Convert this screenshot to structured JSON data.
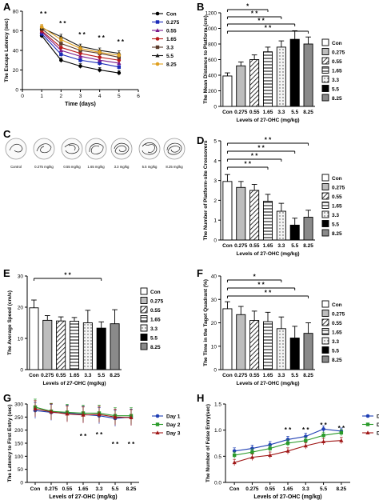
{
  "colors": {
    "con": "#ffffff",
    "d0275": "#bdbdbd",
    "d055": "#ffffff",
    "d165": "#ffffff",
    "d33": "#dedede",
    "d55": "#000000",
    "d825": "#8a8a8a",
    "day1": "#1f3fb4",
    "day2": "#2a9a2a",
    "day3": "#a01818",
    "lineA": [
      "#000000",
      "#1a2ab8",
      "#7a1a8c",
      "#b81a1a",
      "#5a3a2a",
      "#1a1a1a",
      "#e0a020"
    ]
  },
  "panel_letters": [
    "A",
    "B",
    "C",
    "D",
    "E",
    "F",
    "G",
    "H"
  ],
  "chart_data": [
    {
      "panel": "A",
      "type": "line",
      "xlabel": "Time (days)",
      "ylabel": "The Escape Latency (sec)",
      "xlim": [
        0,
        6
      ],
      "ylim": [
        0,
        80
      ],
      "xticks": [
        "0",
        "1",
        "2",
        "3",
        "4",
        "5",
        "6"
      ],
      "yticks": [
        "0",
        "20",
        "40",
        "60",
        "80"
      ],
      "x": [
        1,
        2,
        3,
        4,
        5
      ],
      "series": [
        {
          "name": "Con",
          "values": [
            55,
            30,
            24,
            20,
            17
          ]
        },
        {
          "name": "0.275",
          "values": [
            57,
            36,
            30,
            27,
            23
          ]
        },
        {
          "name": "0.55",
          "values": [
            59,
            40,
            34,
            30,
            27
          ]
        },
        {
          "name": "1.65",
          "values": [
            60,
            43,
            37,
            33,
            30
          ]
        },
        {
          "name": "3.3",
          "values": [
            62,
            47,
            40,
            37,
            33
          ]
        },
        {
          "name": "5.5",
          "values": [
            63,
            54,
            44,
            40,
            37
          ]
        },
        {
          "name": "8.25",
          "values": [
            64,
            51,
            42,
            38,
            35
          ]
        }
      ],
      "annotations": [
        "* *",
        "* *",
        "* *",
        "* *",
        "* *"
      ],
      "legend": "right"
    },
    {
      "panel": "B",
      "type": "bar",
      "xlabel": "Levels of 27-OHC (mg/kg)",
      "ylabel": "The Mean Distance to Platform (cm)",
      "categories": [
        "Con",
        "0.275",
        "0.55",
        "1.65",
        "3.3",
        "5.5",
        "8.25"
      ],
      "values": [
        390,
        520,
        600,
        700,
        760,
        860,
        800
      ],
      "errors": [
        40,
        50,
        60,
        60,
        80,
        110,
        90
      ],
      "ylim": [
        0,
        1200
      ],
      "yticks": [
        "0",
        "200",
        "400",
        "600",
        "800",
        "1000",
        "1200"
      ],
      "significance": [
        "*",
        "* *",
        "* *",
        "* *"
      ],
      "legend": [
        "Con",
        "0.275",
        "0.55",
        "1.65",
        "3.3",
        "5.5",
        "8.25"
      ]
    },
    {
      "panel": "D",
      "type": "bar",
      "xlabel": "Levels of 27-OHC (mg/kg)",
      "ylabel": "The Number of Platform-site Crossovers",
      "categories": [
        "Con",
        "0.275",
        "0.55",
        "1.65",
        "3.3",
        "5.5",
        "8.25"
      ],
      "values": [
        2.95,
        2.65,
        2.5,
        1.95,
        1.45,
        0.75,
        1.15
      ],
      "errors": [
        0.35,
        0.3,
        0.3,
        0.35,
        0.4,
        0.35,
        0.35
      ],
      "ylim": [
        0,
        5
      ],
      "yticks": [
        "0",
        "1",
        "2",
        "3",
        "4",
        "5"
      ],
      "significance": [
        "* *",
        "* *",
        "* *",
        "* *"
      ],
      "legend": [
        "Con",
        "0.275",
        "0.55",
        "1.65",
        "3.3",
        "5.5",
        "8.25"
      ]
    },
    {
      "panel": "E",
      "type": "bar",
      "xlabel": "Levels of 27-OHC (mg/kg)",
      "ylabel": "The Average Speed (cm/s)",
      "categories": [
        "Con",
        "0.275",
        "0.55",
        "1.65",
        "3.3",
        "5.5",
        "8.25"
      ],
      "values": [
        19.8,
        15.8,
        15.6,
        15.5,
        15.0,
        13.3,
        14.7
      ],
      "errors": [
        2.5,
        1.5,
        1.3,
        1.2,
        4.0,
        2.0,
        4.5
      ],
      "ylim": [
        0,
        30
      ],
      "yticks": [
        "0",
        "10",
        "20",
        "30"
      ],
      "significance": [
        "* *"
      ],
      "legend": [
        "Con",
        "0.275",
        "0.55",
        "1.65",
        "3.3",
        "5.5",
        "8.25"
      ]
    },
    {
      "panel": "F",
      "type": "bar",
      "xlabel": "Levels of 27-OHC (mg/kg)",
      "ylabel": "The Time in the Taget Quadrant (%)",
      "categories": [
        "Con",
        "0.275",
        "0.55",
        "1.65",
        "3.3",
        "5.5",
        "8.25"
      ],
      "values": [
        26,
        23.5,
        21,
        20.5,
        17.5,
        13.5,
        15.5
      ],
      "errors": [
        3,
        3.5,
        4,
        4,
        5,
        5,
        4.5
      ],
      "ylim": [
        0,
        40
      ],
      "yticks": [
        "0",
        "10",
        "20",
        "30",
        "40"
      ],
      "significance": [
        "*",
        "* *",
        "* *"
      ],
      "legend": [
        "Con",
        "0.275",
        "0.55",
        "1.65",
        "3.3",
        "5.5",
        "8.25"
      ]
    },
    {
      "panel": "G",
      "type": "line",
      "xlabel": "Levels of 27-OHC (mg/kg)",
      "ylabel": "The Latency to First Entry (sec)",
      "categories": [
        "Con",
        "0.275",
        "0.55",
        "1.65",
        "3.3",
        "5.5",
        "8.25"
      ],
      "ylim": [
        0,
        300
      ],
      "yticks": [
        "0",
        "50",
        "100",
        "150",
        "200",
        "250",
        "300"
      ],
      "series": [
        {
          "name": "Day 1",
          "values": [
            275,
            268,
            265,
            260,
            255,
            245,
            250
          ]
        },
        {
          "name": "Day 2",
          "values": [
            288,
            272,
            268,
            265,
            265,
            255,
            255
          ]
        },
        {
          "name": "Day 3",
          "values": [
            282,
            270,
            262,
            258,
            260,
            250,
            248
          ]
        }
      ],
      "significance": [
        "* *",
        "* *",
        "* *",
        "* *"
      ],
      "legend": "right"
    },
    {
      "panel": "H",
      "type": "line",
      "xlabel": "Levels of 27-OHC (mg/kg)",
      "ylabel": "The Number of False Entry(sec)",
      "categories": [
        "Con",
        "0.275",
        "0.55",
        "1.65",
        "3.3",
        "5.5",
        "8.25"
      ],
      "ylim": [
        0,
        1.5
      ],
      "yticks": [
        "0.0",
        "0.5",
        "1.0",
        "1.5"
      ],
      "series": [
        {
          "name": "Day 1",
          "values": [
            0.6,
            0.65,
            0.72,
            0.82,
            0.88,
            1.02,
            0.98
          ]
        },
        {
          "name": "Day 2",
          "values": [
            0.52,
            0.58,
            0.65,
            0.75,
            0.8,
            0.9,
            0.95
          ]
        },
        {
          "name": "Day 3",
          "values": [
            0.38,
            0.48,
            0.52,
            0.6,
            0.7,
            0.78,
            0.8
          ]
        }
      ],
      "significance": [
        "* *",
        "* *",
        "* *",
        "* *"
      ],
      "legend": "right"
    }
  ],
  "panel_c": {
    "labels": [
      "Control",
      "0.275 mg/kg",
      "0.55 mg/kg",
      "1.65 mg/kg",
      "3.3 mg/kg",
      "5.5 mg/kg",
      "8.25 mg/kg"
    ]
  }
}
